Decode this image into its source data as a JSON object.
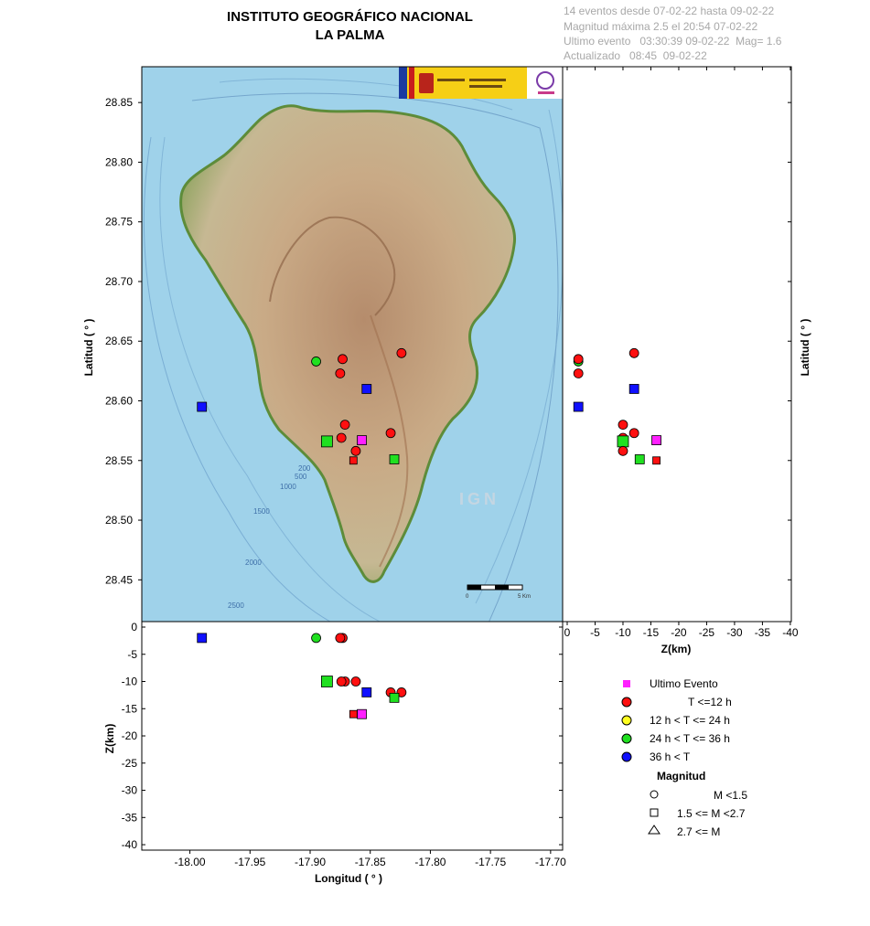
{
  "header": {
    "title_line1": "INSTITUTO GEOGRÁFICO NACIONAL",
    "title_line2": "LA PALMA",
    "info_line1": "14 eventos desde 07-02-22 hasta 09-02-22",
    "info_line2": "Magnitud máxima 2.5 el 20:54 07-02-22",
    "info_line3": "Ultimo evento   03:30:39 09-02-22  Mag= 1.6",
    "info_line4": "Actualizado   08:45  09-02-22"
  },
  "map": {
    "watermark": "IGN",
    "scale_label_start": "0",
    "scale_label_end": "5 Km",
    "contours": [
      {
        "label": "200"
      },
      {
        "label": "500"
      },
      {
        "label": "1000"
      },
      {
        "label": "1500"
      },
      {
        "label": "2000"
      },
      {
        "label": "2500"
      }
    ]
  },
  "legend": {
    "latest_label": "Ultimo Evento",
    "time_labels": [
      "T <=12 h",
      "12 h  < T <= 24 h",
      "24 h  < T <= 36 h",
      "36 h <  T"
    ],
    "time_colors": [
      "#ff1010",
      "#ffff20",
      "#20e020",
      "#1010ff"
    ],
    "latest_color": "#ff20ff",
    "magnitude_title": "Magnitud",
    "magnitude_labels": [
      "M <1.5",
      "1.5 <= M <2.7",
      "2.7 <= M"
    ]
  },
  "chart_data": [
    {
      "type": "scatter",
      "name": "map",
      "xlabel": "",
      "ylabel": "Latitud ( ° )",
      "xlim": [
        -18.04,
        -17.69
      ],
      "ylim": [
        28.415,
        28.88
      ],
      "yticks": [
        "28.45",
        "28.50",
        "28.55",
        "28.60",
        "28.65",
        "28.70",
        "28.75",
        "28.80",
        "28.85"
      ],
      "points": [
        {
          "lon": -17.99,
          "lat": 28.595,
          "depth": 2,
          "time": "36h+",
          "mag": "medium"
        },
        {
          "lon": -17.895,
          "lat": 28.633,
          "depth": 2,
          "time": "24-36h",
          "mag": "small"
        },
        {
          "lon": -17.873,
          "lat": 28.635,
          "depth": 2,
          "time": "0-12h",
          "mag": "small"
        },
        {
          "lon": -17.875,
          "lat": 28.623,
          "depth": 2,
          "time": "0-12h",
          "mag": "small"
        },
        {
          "lon": -17.824,
          "lat": 28.64,
          "depth": 12,
          "time": "0-12h",
          "mag": "small"
        },
        {
          "lon": -17.853,
          "lat": 28.61,
          "depth": 12,
          "time": "36h+",
          "mag": "medium"
        },
        {
          "lon": -17.871,
          "lat": 28.58,
          "depth": 10,
          "time": "0-12h",
          "mag": "small"
        },
        {
          "lon": -17.833,
          "lat": 28.573,
          "depth": 12,
          "time": "0-12h",
          "mag": "small"
        },
        {
          "lon": -17.874,
          "lat": 28.569,
          "depth": 10,
          "time": "0-12h",
          "mag": "small"
        },
        {
          "lon": -17.886,
          "lat": 28.566,
          "depth": 10,
          "time": "24-36h",
          "mag": "large"
        },
        {
          "lon": -17.857,
          "lat": 28.567,
          "depth": 16,
          "time": "latest",
          "mag": "medium"
        },
        {
          "lon": -17.862,
          "lat": 28.558,
          "depth": 10,
          "time": "0-12h",
          "mag": "small"
        },
        {
          "lon": -17.83,
          "lat": 28.551,
          "depth": 13,
          "time": "24-36h",
          "mag": "medium"
        },
        {
          "lon": -17.864,
          "lat": 28.55,
          "depth": 16,
          "time": "0-12h",
          "mag": "tiny-square"
        }
      ]
    },
    {
      "type": "scatter",
      "name": "depth-latitude",
      "xlabel": "Z(km)",
      "ylabel": "Latitud ( ° )",
      "xlim": [
        0,
        -41
      ],
      "xticks": [
        "0",
        "-5",
        "-10",
        "-15",
        "-20",
        "-25",
        "-30",
        "-35",
        "-40"
      ],
      "ylim": [
        28.415,
        28.88
      ]
    },
    {
      "type": "scatter",
      "name": "longitude-depth",
      "xlabel": "Longitud ( ° )",
      "ylabel": "Z(km)",
      "xlim": [
        -18.04,
        -17.69
      ],
      "xticks": [
        "-18.00",
        "-17.95",
        "-17.90",
        "-17.85",
        "-17.80",
        "-17.75",
        "-17.70"
      ],
      "ylim": [
        0,
        -41
      ],
      "yticks": [
        "0",
        "-5",
        "-10",
        "-15",
        "-20",
        "-25",
        "-30",
        "-35",
        "-40"
      ]
    }
  ]
}
